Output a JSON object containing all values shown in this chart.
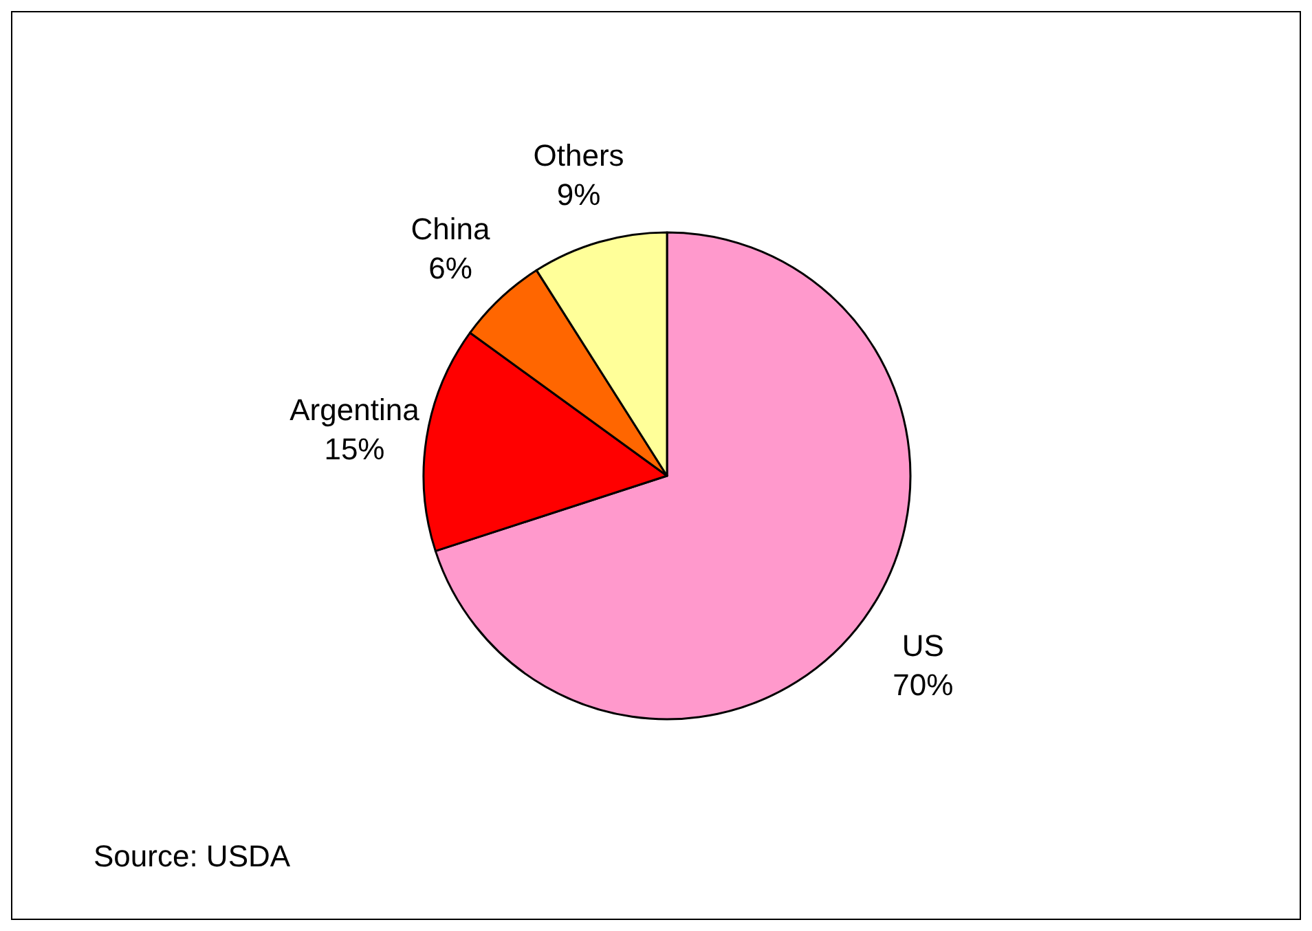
{
  "chart_data": {
    "type": "pie",
    "categories": [
      "US",
      "Argentina",
      "China",
      "Others"
    ],
    "values": [
      70,
      15,
      6,
      9
    ],
    "colors": [
      "#ff99cc",
      "#ff0000",
      "#ff6600",
      "#ffff99"
    ],
    "value_labels": [
      "70%",
      "15%",
      "6%",
      "9%"
    ],
    "annotations": [
      "Source: USDA"
    ]
  }
}
